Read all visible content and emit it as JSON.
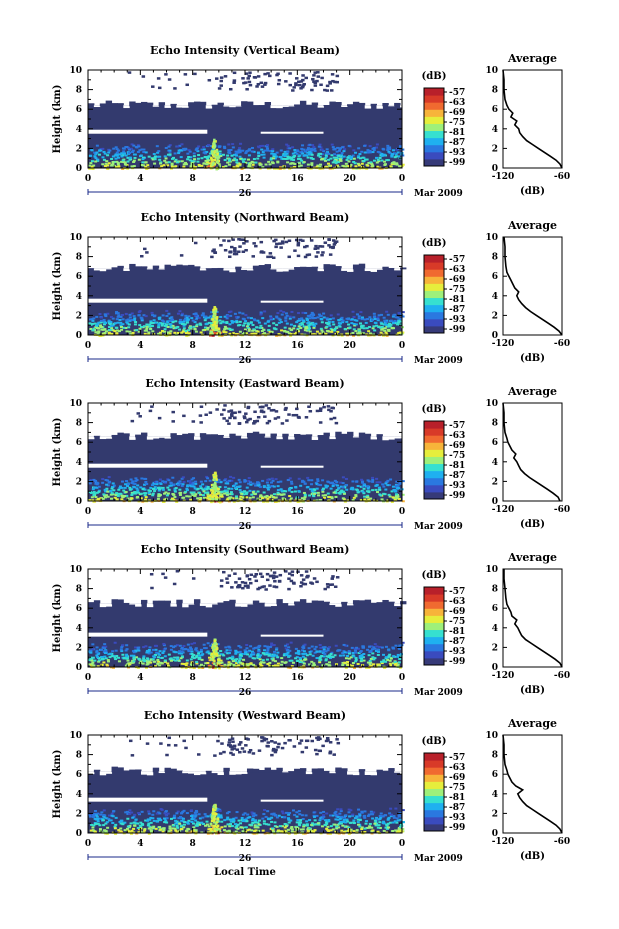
{
  "colors": {
    "background_fill": "#333a6e",
    "colorbar": [
      "#363a78",
      "#3a4bbe",
      "#2a78e0",
      "#1fb0f0",
      "#36e0d0",
      "#9ef07a",
      "#e6ee3c",
      "#f7b43a",
      "#f06a30",
      "#d83a28",
      "#b8202a"
    ],
    "profile_line": "#000000"
  },
  "chart_data": [
    {
      "type": "heatmap",
      "title": "Echo Intensity (Vertical Beam)",
      "ylabel": "Height (km)",
      "xticks": [
        "0",
        "4",
        "8",
        "12",
        "16",
        "20",
        "0"
      ],
      "yticks": [
        "0",
        "2",
        "4",
        "6",
        "8",
        "10"
      ],
      "xlim": [
        0,
        24
      ],
      "ylim": [
        0,
        10
      ],
      "date_label": "26",
      "month_label": "Mar 2009",
      "colorbar": {
        "unit": "(dB)",
        "ticks": [
          "-57",
          "-63",
          "-69",
          "-75",
          "-81",
          "-87",
          "-93",
          "-99"
        ]
      },
      "plume_hour": 9.6,
      "top_layer_km": 6.4,
      "gap_km": 3.6,
      "profile": {
        "title": "Average",
        "xlabel": "(dB)",
        "xticks": [
          "-120",
          "-60"
        ],
        "xlim": [
          -120,
          -60
        ],
        "yticks": [
          "0",
          "2",
          "4",
          "6",
          "8",
          "10"
        ],
        "x": [
          -60,
          -62,
          -66,
          -72,
          -78,
          -84,
          -90,
          -96,
          -100,
          -103,
          -104,
          -108,
          -106,
          -112,
          -110,
          -114,
          -116,
          -118,
          -119,
          -119,
          -120
        ],
        "y": [
          0,
          0.4,
          0.8,
          1.2,
          1.6,
          2.0,
          2.4,
          2.8,
          3.2,
          3.6,
          4.0,
          4.4,
          4.8,
          5.2,
          5.6,
          6.0,
          6.4,
          7.0,
          8.0,
          9.0,
          10.0
        ]
      }
    },
    {
      "type": "heatmap",
      "title": "Echo Intensity (Northward Beam)",
      "ylabel": "Height (km)",
      "xticks": [
        "0",
        "4",
        "8",
        "12",
        "16",
        "20",
        "0"
      ],
      "yticks": [
        "0",
        "2",
        "4",
        "6",
        "8",
        "10"
      ],
      "xlim": [
        0,
        24
      ],
      "ylim": [
        0,
        10
      ],
      "date_label": "26",
      "month_label": "Mar 2009",
      "colorbar": {
        "unit": "(dB)",
        "ticks": [
          "-57",
          "-63",
          "-69",
          "-75",
          "-81",
          "-87",
          "-93",
          "-99"
        ]
      },
      "plume_hour": 9.6,
      "top_layer_km": 6.8,
      "gap_km": 3.4,
      "profile": {
        "title": "Average",
        "xlabel": "(dB)",
        "xticks": [
          "-120",
          "-60"
        ],
        "xlim": [
          -120,
          -60
        ],
        "yticks": [
          "0",
          "2",
          "4",
          "6",
          "8",
          "10"
        ],
        "x": [
          -60,
          -63,
          -68,
          -74,
          -80,
          -86,
          -92,
          -97,
          -101,
          -104,
          -106,
          -104,
          -108,
          -110,
          -112,
          -114,
          -116,
          -117,
          -118,
          -118,
          -119
        ],
        "y": [
          0,
          0.4,
          0.8,
          1.2,
          1.6,
          2.0,
          2.4,
          2.8,
          3.2,
          3.6,
          4.0,
          4.4,
          4.8,
          5.2,
          5.6,
          6.0,
          6.4,
          7.0,
          8.0,
          9.0,
          10.0
        ]
      }
    },
    {
      "type": "heatmap",
      "title": "Echo Intensity (Eastward Beam)",
      "ylabel": "Height (km)",
      "xticks": [
        "0",
        "4",
        "8",
        "12",
        "16",
        "20",
        "0"
      ],
      "yticks": [
        "0",
        "2",
        "4",
        "6",
        "8",
        "10"
      ],
      "xlim": [
        0,
        24
      ],
      "ylim": [
        0,
        10
      ],
      "date_label": "26",
      "month_label": "Mar 2009",
      "colorbar": {
        "unit": "(dB)",
        "ticks": [
          "-57",
          "-63",
          "-69",
          "-75",
          "-81",
          "-87",
          "-93",
          "-99"
        ]
      },
      "plume_hour": 9.6,
      "top_layer_km": 6.6,
      "gap_km": 3.5,
      "profile": {
        "title": "Average",
        "xlabel": "(dB)",
        "xticks": [
          "-120",
          "-60"
        ],
        "xlim": [
          -120,
          -60
        ],
        "yticks": [
          "0",
          "2",
          "4",
          "6",
          "8",
          "10"
        ],
        "x": [
          -62,
          -64,
          -69,
          -75,
          -81,
          -87,
          -93,
          -98,
          -102,
          -104,
          -106,
          -109,
          -107,
          -111,
          -113,
          -115,
          -116,
          -118,
          -119,
          -119,
          -120
        ],
        "y": [
          0,
          0.4,
          0.8,
          1.2,
          1.6,
          2.0,
          2.4,
          2.8,
          3.2,
          3.6,
          4.0,
          4.4,
          4.8,
          5.2,
          5.6,
          6.0,
          6.4,
          7.0,
          8.0,
          9.0,
          10.0
        ]
      }
    },
    {
      "type": "heatmap",
      "title": "Echo Intensity (Southward Beam)",
      "ylabel": "Height (km)",
      "xticks": [
        "0",
        "4",
        "8",
        "12",
        "16",
        "20",
        "0"
      ],
      "yticks": [
        "0",
        "2",
        "4",
        "6",
        "8",
        "10"
      ],
      "xlim": [
        0,
        24
      ],
      "ylim": [
        0,
        10
      ],
      "date_label": "26",
      "month_label": "Mar 2009",
      "colorbar": {
        "unit": "(dB)",
        "ticks": [
          "-57",
          "-63",
          "-69",
          "-75",
          "-81",
          "-87",
          "-93",
          "-99"
        ]
      },
      "plume_hour": 9.6,
      "top_layer_km": 6.5,
      "gap_km": 3.2,
      "profile": {
        "title": "Average",
        "xlabel": "(dB)",
        "xticks": [
          "-120",
          "-60"
        ],
        "xlim": [
          -120,
          -60
        ],
        "yticks": [
          "0",
          "2",
          "4",
          "6",
          "8",
          "10"
        ],
        "x": [
          -60,
          -62,
          -67,
          -73,
          -79,
          -85,
          -91,
          -97,
          -101,
          -103,
          -105,
          -108,
          -106,
          -111,
          -112,
          -114,
          -116,
          -117,
          -118,
          -119,
          -119
        ],
        "y": [
          0,
          0.4,
          0.8,
          1.2,
          1.6,
          2.0,
          2.4,
          2.8,
          3.2,
          3.6,
          4.0,
          4.4,
          4.8,
          5.2,
          5.6,
          6.0,
          6.4,
          7.0,
          8.0,
          9.0,
          10.0
        ]
      }
    },
    {
      "type": "heatmap",
      "title": "Echo Intensity (Westward Beam)",
      "ylabel": "Height (km)",
      "xlabel": "Local Time",
      "xticks": [
        "0",
        "4",
        "8",
        "12",
        "16",
        "20",
        "0"
      ],
      "yticks": [
        "0",
        "2",
        "4",
        "6",
        "8",
        "10"
      ],
      "xlim": [
        0,
        24
      ],
      "ylim": [
        0,
        10
      ],
      "date_label": "26",
      "month_label": "Mar 2009",
      "colorbar": {
        "unit": "(dB)",
        "ticks": [
          "-57",
          "-63",
          "-69",
          "-75",
          "-81",
          "-87",
          "-93",
          "-99"
        ]
      },
      "plume_hour": 9.6,
      "top_layer_km": 6.3,
      "gap_km": 3.3,
      "profile": {
        "title": "Average",
        "xlabel": "(dB)",
        "xticks": [
          "-120",
          "-60"
        ],
        "xlim": [
          -120,
          -60
        ],
        "yticks": [
          "0",
          "2",
          "4",
          "6",
          "8",
          "10"
        ],
        "x": [
          -60,
          -62,
          -66,
          -72,
          -78,
          -84,
          -90,
          -96,
          -100,
          -103,
          -105,
          -100,
          -107,
          -111,
          -113,
          -115,
          -116,
          -118,
          -119,
          -119,
          -120
        ],
        "y": [
          0,
          0.4,
          0.8,
          1.2,
          1.6,
          2.0,
          2.4,
          2.8,
          3.2,
          3.6,
          4.0,
          4.4,
          4.8,
          5.2,
          5.6,
          6.0,
          6.4,
          7.0,
          8.0,
          9.0,
          10.0
        ]
      }
    }
  ]
}
